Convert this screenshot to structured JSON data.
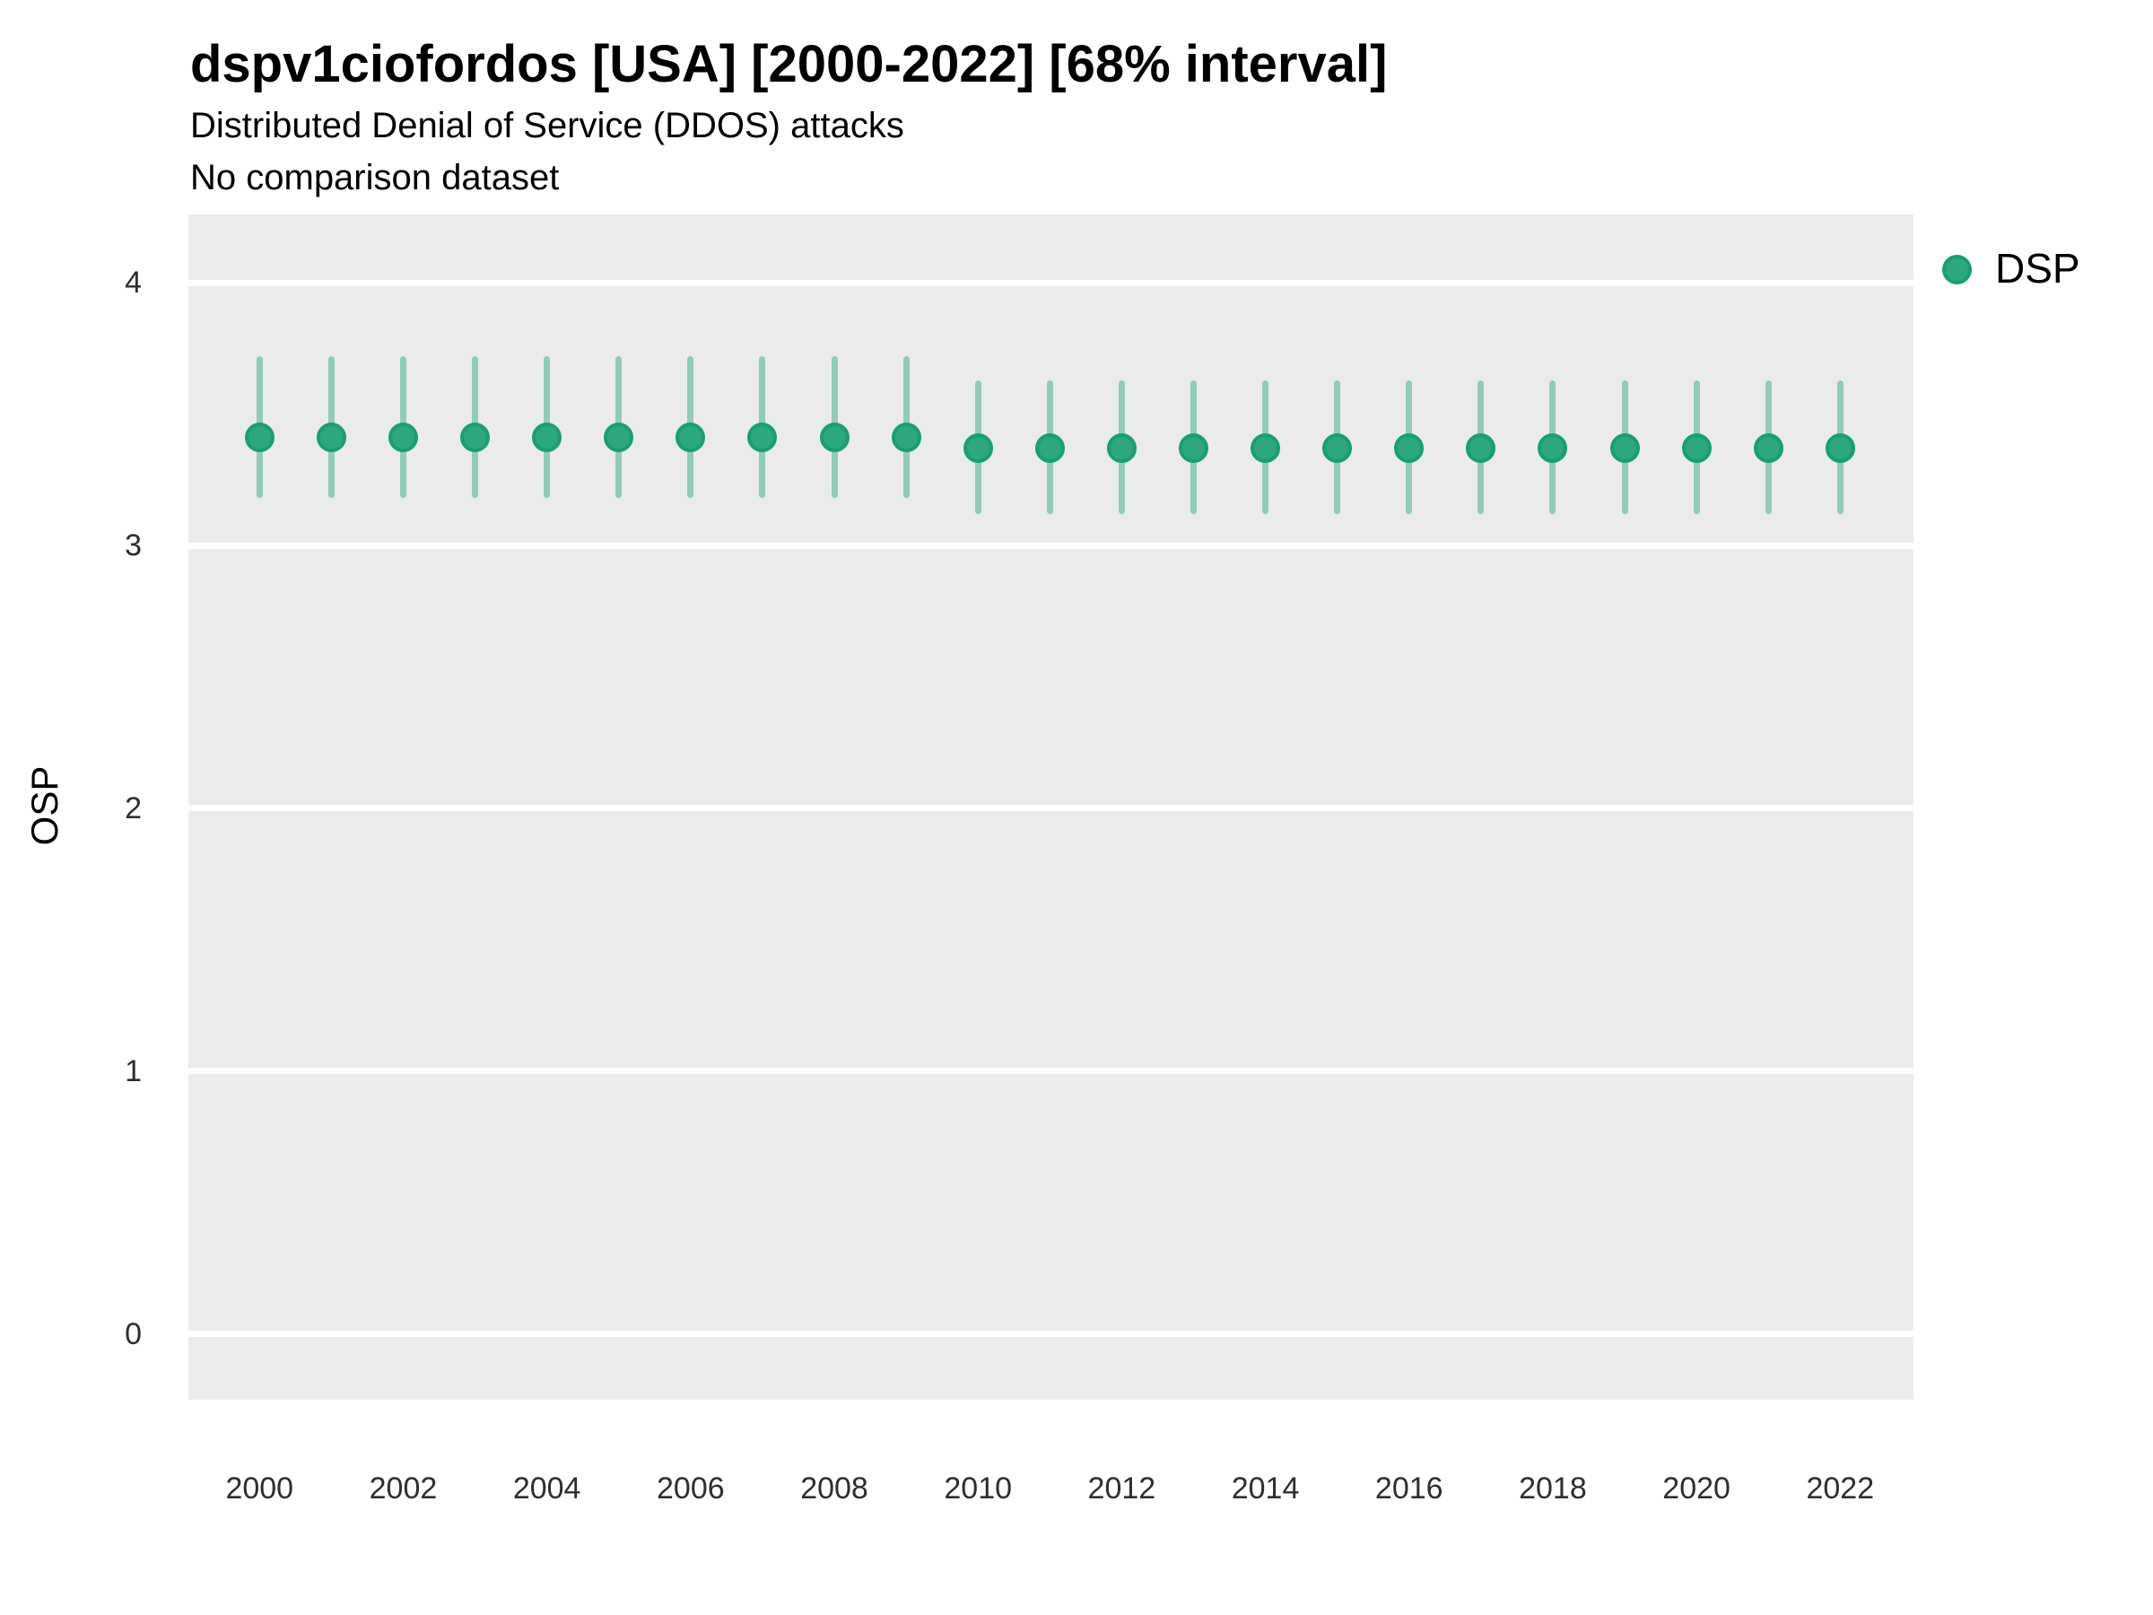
{
  "header": {
    "title": "dspv1ciofordos [USA] [2000-2022] [68% interval]",
    "subtitle": "Distributed Denial of Service (DDOS) attacks",
    "note": "No comparison dataset"
  },
  "chart_data": {
    "type": "pointrange",
    "title": "dspv1ciofordos [USA] [2000-2022] [68% interval]",
    "subtitle": "Distributed Denial of Service (DDOS) attacks",
    "annotation": "No comparison dataset",
    "interval_level": "68%",
    "country": "USA",
    "topic": "Distributed Denial of Service (DDOS) attacks",
    "xlabel": "",
    "ylabel": "OSP",
    "legend": {
      "position": "right-top",
      "entries": [
        {
          "label": "DSP",
          "marker": "circle-icon",
          "color": "#2DA77E"
        }
      ]
    },
    "x": [
      2000,
      2001,
      2002,
      2003,
      2004,
      2005,
      2006,
      2007,
      2008,
      2009,
      2010,
      2011,
      2012,
      2013,
      2014,
      2015,
      2016,
      2017,
      2018,
      2019,
      2020,
      2021,
      2022
    ],
    "series": [
      {
        "name": "DSP",
        "mid": [
          3.41,
          3.41,
          3.41,
          3.41,
          3.41,
          3.41,
          3.41,
          3.41,
          3.41,
          3.41,
          3.37,
          3.37,
          3.37,
          3.37,
          3.37,
          3.37,
          3.37,
          3.37,
          3.37,
          3.37,
          3.37,
          3.37,
          3.37
        ],
        "lo68": [
          3.18,
          3.18,
          3.18,
          3.18,
          3.18,
          3.18,
          3.18,
          3.18,
          3.18,
          3.18,
          3.12,
          3.12,
          3.12,
          3.12,
          3.12,
          3.12,
          3.12,
          3.12,
          3.12,
          3.12,
          3.12,
          3.12,
          3.12
        ],
        "hi68": [
          3.72,
          3.72,
          3.72,
          3.72,
          3.72,
          3.72,
          3.72,
          3.72,
          3.72,
          3.72,
          3.63,
          3.63,
          3.63,
          3.63,
          3.63,
          3.63,
          3.63,
          3.63,
          3.63,
          3.63,
          3.63,
          3.63,
          3.63
        ]
      }
    ],
    "x_tick_labels": [
      "2000",
      "2002",
      "2004",
      "2006",
      "2008",
      "2010",
      "2012",
      "2014",
      "2016",
      "2018",
      "2020",
      "2022"
    ],
    "y_tick_labels": [
      "0",
      "1",
      "2",
      "3",
      "4"
    ],
    "y_ticks": [
      0,
      1,
      2,
      3,
      4
    ],
    "ylim": [
      -0.25,
      4.26
    ],
    "xlim": [
      1999.01,
      2023.02
    ],
    "grid": {
      "horizontal_major": true,
      "vertical": false,
      "color": "#FFFFFF"
    },
    "panel_background": "#EBEBEB",
    "colors": {
      "point_fill": "#2DA77E",
      "point_stroke": "#17A06F",
      "interval_bar": "#8FCDB4"
    }
  }
}
